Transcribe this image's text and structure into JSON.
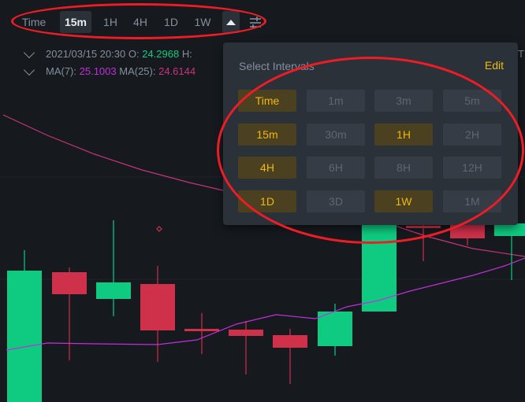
{
  "toolbar": {
    "intervals": [
      "Time",
      "15m",
      "1H",
      "4H",
      "1D",
      "1W"
    ],
    "active": "15m",
    "icons": [
      "triangle-up-icon",
      "settings-sliders-icon"
    ]
  },
  "ohlc": {
    "date": "2021/03/15 20:30",
    "open_label": "O:",
    "open_value": "24.2968",
    "high_label": "H:",
    "trailing_char": "T"
  },
  "ma": {
    "ma7_label": "MA(7):",
    "ma7_value": "25.1003",
    "ma25_label": "MA(25):",
    "ma25_value": "24.6144"
  },
  "panel": {
    "title": "Select Intervals",
    "edit": "Edit",
    "cells": [
      {
        "label": "Time",
        "selected": true
      },
      {
        "label": "1m",
        "selected": false
      },
      {
        "label": "3m",
        "selected": false
      },
      {
        "label": "5m",
        "selected": false
      },
      {
        "label": "15m",
        "selected": true
      },
      {
        "label": "30m",
        "selected": false
      },
      {
        "label": "1H",
        "selected": true
      },
      {
        "label": "2H",
        "selected": false
      },
      {
        "label": "4H",
        "selected": true
      },
      {
        "label": "6H",
        "selected": false
      },
      {
        "label": "8H",
        "selected": false
      },
      {
        "label": "12H",
        "selected": false
      },
      {
        "label": "1D",
        "selected": true
      },
      {
        "label": "3D",
        "selected": false
      },
      {
        "label": "1W",
        "selected": true
      },
      {
        "label": "1M",
        "selected": false
      }
    ]
  },
  "colors": {
    "up": "#0ecb81",
    "down": "#cf304a",
    "accent": "#f0b90b",
    "ma7": "#c12fd9",
    "ma25": "#c8337a",
    "annotation": "#ee1c25"
  }
}
